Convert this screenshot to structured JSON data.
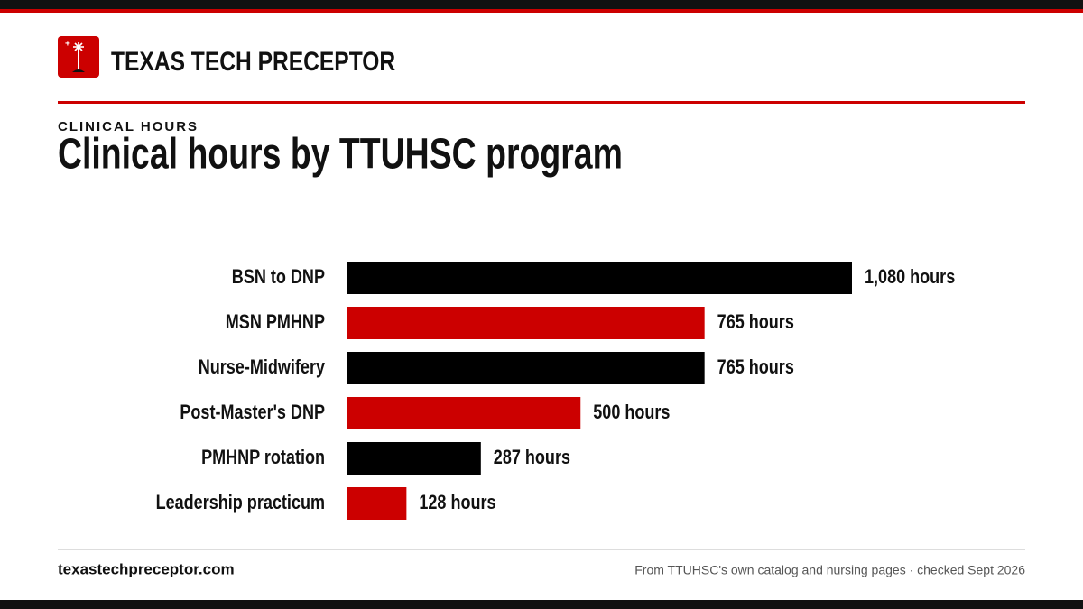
{
  "header": {
    "brand": "TEXAS TECH PRECEPTOR"
  },
  "chart_data": {
    "type": "bar",
    "orientation": "horizontal",
    "kicker": "CLINICAL HOURS",
    "title": "Clinical hours by TTUHSC program",
    "categories": [
      "BSN to DNP",
      "MSN PMHNP",
      "Nurse-Midwifery",
      "Post-Master's DNP",
      "PMHNP rotation",
      "Leadership practicum"
    ],
    "values": [
      1080,
      765,
      765,
      500,
      287,
      128
    ],
    "value_labels": [
      "1,080 hours",
      "765 hours",
      "765 hours",
      "500 hours",
      "287 hours",
      "128 hours"
    ],
    "colors": [
      "#000000",
      "#cc0000",
      "#000000",
      "#cc0000",
      "#000000",
      "#cc0000"
    ]
  },
  "footer": {
    "site": "texastechpreceptor.com",
    "source": "From TTUHSC's own catalog and nursing pages · checked Sept 2026"
  }
}
